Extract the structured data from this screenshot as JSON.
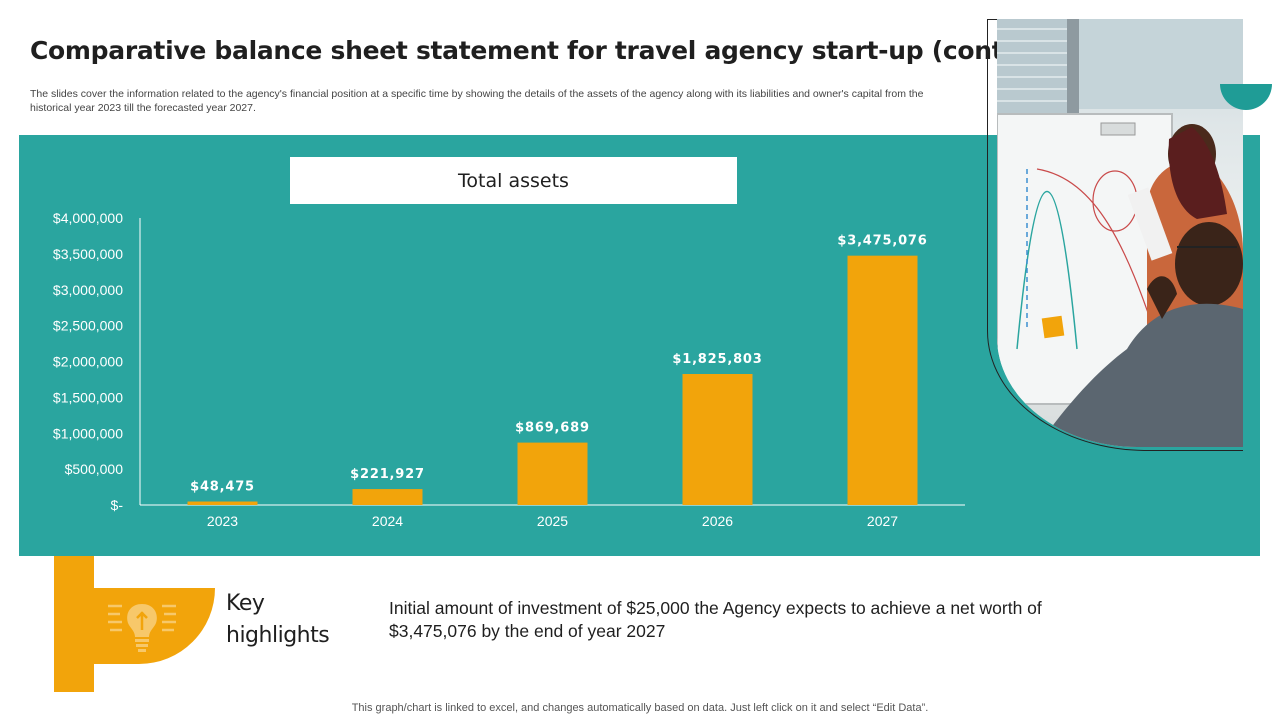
{
  "header": {
    "title": "Comparative balance sheet statement for travel agency start-up (cont.)",
    "subtitle": "The slides cover the information related to the agency's financial position at a specific time by showing the details of the assets of the agency along with its liabilities and owner's capital from the historical year 2023 till the forecasted year 2027."
  },
  "chart_data": {
    "type": "bar",
    "title": "Total assets",
    "categories": [
      "2023",
      "2024",
      "2025",
      "2026",
      "2027"
    ],
    "values": [
      48475,
      221927,
      869689,
      1825803,
      3475076
    ],
    "value_labels": [
      "$48,475",
      "$221,927",
      "$869,689",
      "$1,825,803",
      "$3,475,076"
    ],
    "y_ticks": [
      0,
      500000,
      1000000,
      1500000,
      2000000,
      2500000,
      3000000,
      3500000,
      4000000
    ],
    "y_tick_labels": [
      "$-",
      "$500,000",
      "$1,000,000",
      "$1,500,000",
      "$2,000,000",
      "$2,500,000",
      "$3,000,000",
      "$3,500,000",
      "$4,000,000"
    ],
    "ylim": [
      0,
      4000000
    ],
    "xlabel": "",
    "ylabel": "",
    "grid": false,
    "bar_color": "#f2a40b",
    "background_color": "#2aa59f"
  },
  "highlights": {
    "title": "Key highlights",
    "text": "Initial amount of investment of $25,000 the Agency expects to achieve a net worth of $3,475,076 by the end of year 2027",
    "icon": "lightbulb-icon"
  },
  "footer": {
    "note": "This graph/chart is linked to excel, and changes automatically based on data. Just left click on it and select “Edit Data”."
  },
  "colors": {
    "teal": "#2aa59f",
    "accent": "#f2a40b"
  }
}
